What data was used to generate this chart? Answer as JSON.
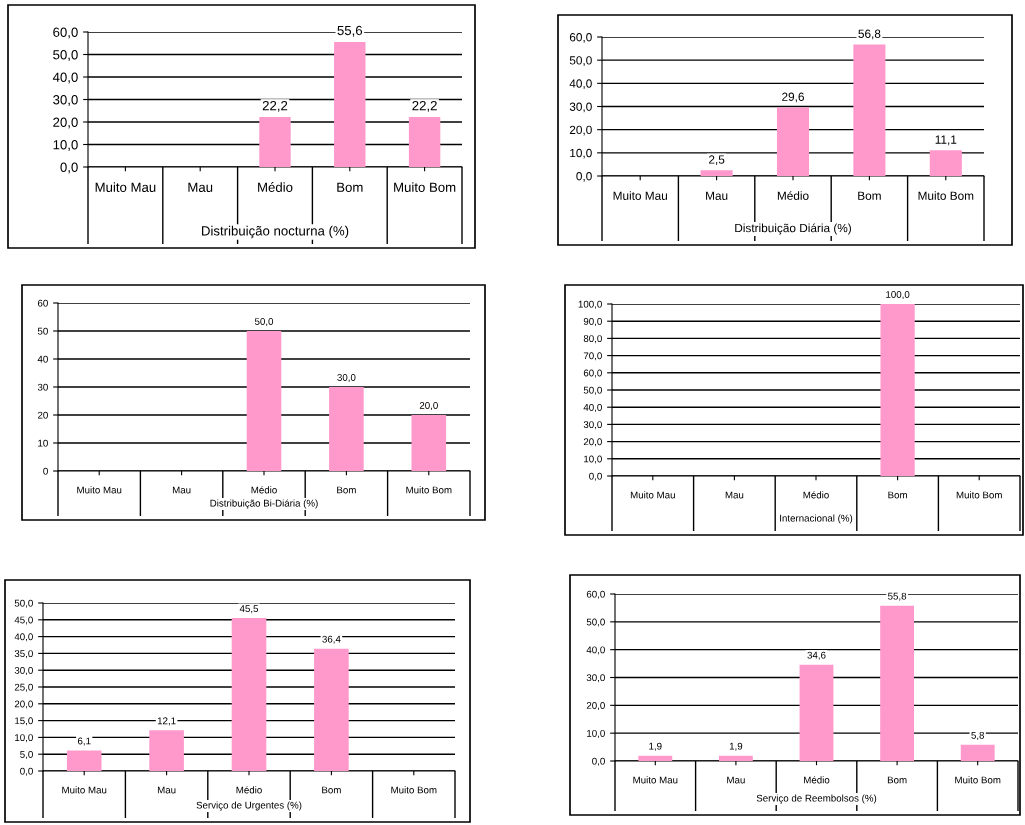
{
  "chart_data": [
    {
      "type": "bar",
      "xlabel": "Distribuição nocturna (%)",
      "categories": [
        "Muito Mau",
        "Mau",
        "Médio",
        "Bom",
        "Muito Bom"
      ],
      "values": [
        null,
        null,
        22.2,
        55.6,
        22.2
      ],
      "value_labels": [
        null,
        null,
        "22,2",
        "55,6",
        "22,2"
      ],
      "color": "#ff99cc",
      "ylim": [
        0,
        60
      ],
      "yticks": [
        {
          "value": 0,
          "label": "0,0"
        },
        {
          "value": 10,
          "label": "10,0"
        },
        {
          "value": 20,
          "label": "20,0"
        },
        {
          "value": 30,
          "label": "30,0"
        },
        {
          "value": 40,
          "label": "40,0"
        },
        {
          "value": 50,
          "label": "50,0"
        },
        {
          "value": 60,
          "label": "60,0"
        }
      ],
      "grid": "y"
    },
    {
      "type": "bar",
      "xlabel": "Distribuição Diária (%)",
      "categories": [
        "Muito Mau",
        "Mau",
        "Médio",
        "Bom",
        "Muito Bom"
      ],
      "values": [
        null,
        2.5,
        29.6,
        56.8,
        11.1
      ],
      "value_labels": [
        null,
        "2,5",
        "29,6",
        "56,8",
        "11,1"
      ],
      "color": "#ff99cc",
      "ylim": [
        0,
        60
      ],
      "yticks": [
        {
          "value": 0,
          "label": "0,0"
        },
        {
          "value": 10,
          "label": "10,0"
        },
        {
          "value": 20,
          "label": "20,0"
        },
        {
          "value": 30,
          "label": "30,0"
        },
        {
          "value": 40,
          "label": "40,0"
        },
        {
          "value": 50,
          "label": "50,0"
        },
        {
          "value": 60,
          "label": "60,0"
        }
      ],
      "grid": "y"
    },
    {
      "type": "bar",
      "xlabel": "Distribuição Bi-Diária (%)",
      "categories": [
        "Muito Mau",
        "Mau",
        "Médio",
        "Bom",
        "Muito Bom"
      ],
      "values": [
        null,
        null,
        50.0,
        30.0,
        20.0
      ],
      "value_labels": [
        null,
        null,
        "50,0",
        "30,0",
        "20,0"
      ],
      "color": "#ff99cc",
      "ylim": [
        0,
        60
      ],
      "yticks": [
        0,
        10,
        20,
        30,
        40,
        50,
        60
      ],
      "grid": "y"
    },
    {
      "type": "bar",
      "xlabel": "Internacional (%)",
      "categories": [
        "Muito Mau",
        "Mau",
        "Médio",
        "Bom",
        "Muito Bom"
      ],
      "values": [
        null,
        null,
        null,
        100.0,
        null
      ],
      "value_labels": [
        null,
        null,
        null,
        "100,0",
        null
      ],
      "color": "#ff99cc",
      "ylim": [
        0,
        100
      ],
      "yticks": [
        {
          "value": 0,
          "label": "0,0"
        },
        {
          "value": 10,
          "label": "10,0"
        },
        {
          "value": 20,
          "label": "20,0"
        },
        {
          "value": 30,
          "label": "30,0"
        },
        {
          "value": 40,
          "label": "40,0"
        },
        {
          "value": 50,
          "label": "50,0"
        },
        {
          "value": 60,
          "label": "60,0"
        },
        {
          "value": 70,
          "label": "70,0"
        },
        {
          "value": 80,
          "label": "80,0"
        },
        {
          "value": 90,
          "label": "90,0"
        },
        {
          "value": 100,
          "label": "100,0"
        }
      ],
      "grid": "y"
    },
    {
      "type": "bar",
      "xlabel": "Serviço de Urgentes (%)",
      "categories": [
        "Muito Mau",
        "Mau",
        "Médio",
        "Bom",
        "Muito Bom"
      ],
      "values": [
        6.1,
        12.1,
        45.5,
        36.4,
        null
      ],
      "value_labels": [
        "6,1",
        "12,1",
        "45,5",
        "36,4",
        null
      ],
      "color": "#ff99cc",
      "ylim": [
        0,
        50
      ],
      "yticks": [
        {
          "value": 0,
          "label": "0,0"
        },
        {
          "value": 5,
          "label": "5,0"
        },
        {
          "value": 10,
          "label": "10,0"
        },
        {
          "value": 15,
          "label": "15,0"
        },
        {
          "value": 20,
          "label": "20,0"
        },
        {
          "value": 25,
          "label": "25,0"
        },
        {
          "value": 30,
          "label": "30,0"
        },
        {
          "value": 35,
          "label": "35,0"
        },
        {
          "value": 40,
          "label": "40,0"
        },
        {
          "value": 45,
          "label": "45,0"
        },
        {
          "value": 50,
          "label": "50,0"
        }
      ],
      "grid": "y"
    },
    {
      "type": "bar",
      "xlabel": "Serviço de Reembolsos (%)",
      "categories": [
        "Muito Mau",
        "Mau",
        "Médio",
        "Bom",
        "Muito Bom"
      ],
      "values": [
        1.9,
        1.9,
        34.6,
        55.8,
        5.8
      ],
      "value_labels": [
        "1,9",
        "1,9",
        "34,6",
        "55,8",
        "5,8"
      ],
      "color": "#ff99cc",
      "ylim": [
        0,
        60
      ],
      "yticks": [
        {
          "value": 0,
          "label": "0,0"
        },
        {
          "value": 10,
          "label": "10,0"
        },
        {
          "value": 20,
          "label": "20,0"
        },
        {
          "value": 30,
          "label": "30,0"
        },
        {
          "value": 40,
          "label": "40,0"
        },
        {
          "value": 50,
          "label": "50,0"
        },
        {
          "value": 60,
          "label": "60,0"
        }
      ],
      "grid": "y"
    }
  ]
}
